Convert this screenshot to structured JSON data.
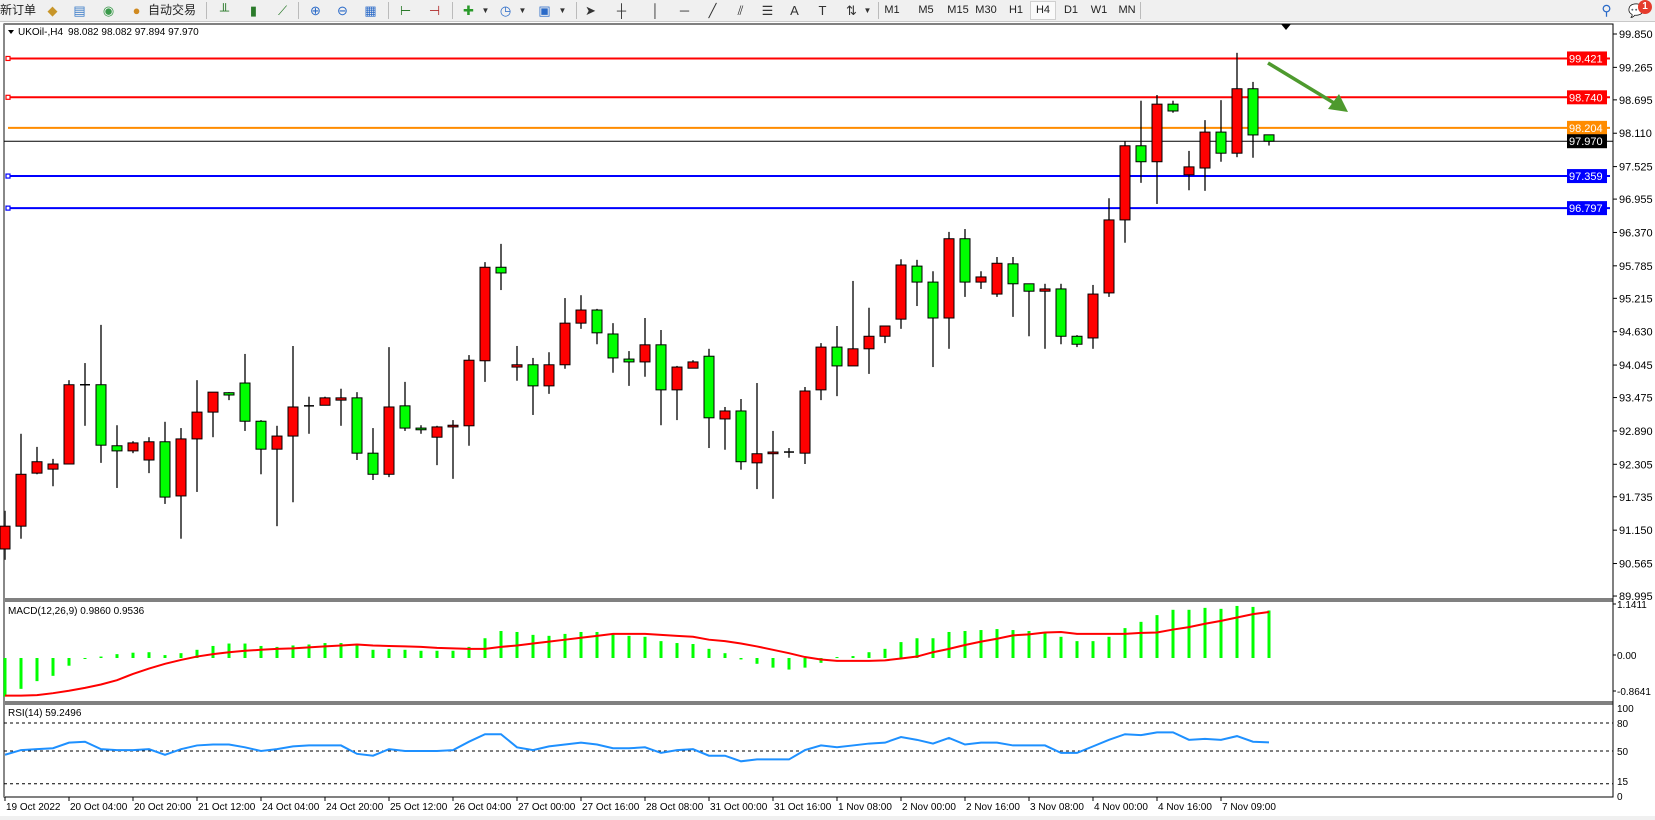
{
  "toolbar": {
    "new_order": "新订单",
    "auto_trading": "自动交易",
    "icons": [
      "market-watch-icon",
      "data-window-icon",
      "signals-icon",
      "auto-trading-icon",
      "bar-chart-icon",
      "candlestick-icon",
      "line-chart-icon",
      "zoom-in-icon",
      "zoom-out-icon",
      "tile-windows-icon",
      "auto-scroll-icon",
      "chart-shift-icon",
      "indicators-icon",
      "periods-icon",
      "templates-icon",
      "cursor-icon",
      "crosshair-icon",
      "vertical-line-icon",
      "horizontal-line-icon",
      "trendline-icon",
      "channel-icon",
      "fibonacci-icon",
      "text-icon",
      "text-label-icon",
      "arrows-icon",
      "search-icon",
      "notifications-icon"
    ],
    "timeframes": [
      "M1",
      "M5",
      "M15",
      "M30",
      "H1",
      "H4",
      "D1",
      "W1",
      "MN"
    ],
    "active_timeframe": "H4",
    "notification_count": "1"
  },
  "chart": {
    "symbol": "UKOil-,H4",
    "ohlc_readout": "98.082 98.082 97.894 97.970",
    "colors": {
      "up": "#ff0000",
      "down": "#00ff00",
      "outline": "#000000"
    }
  },
  "chart_data": [
    {
      "type": "candlestick",
      "title": "UKOil-,H4 98.082 98.082 97.894 97.970",
      "ylim": [
        89.995,
        99.85
      ],
      "y_ticks": [
        "99.850",
        "99.265",
        "98.695",
        "98.110",
        "97.525",
        "96.955",
        "96.370",
        "95.785",
        "95.215",
        "94.630",
        "94.045",
        "93.475",
        "92.890",
        "92.305",
        "91.735",
        "91.150",
        "90.565",
        "89.995"
      ],
      "x_tick_labels": [
        "19 Oct 2022",
        "20 Oct 04:00",
        "20 Oct 20:00",
        "21 Oct 12:00",
        "24 Oct 04:00",
        "24 Oct 20:00",
        "25 Oct 12:00",
        "26 Oct 04:00",
        "27 Oct 00:00",
        "27 Oct 16:00",
        "28 Oct 08:00",
        "31 Oct 00:00",
        "31 Oct 16:00",
        "1 Nov 08:00",
        "2 Nov 00:00",
        "2 Nov 16:00",
        "3 Nov 08:00",
        "4 Nov 00:00",
        "4 Nov 16:00",
        "7 Nov 09:00"
      ],
      "ohlc": [
        [
          90.82,
          91.49,
          90.63,
          91.22
        ],
        [
          91.22,
          92.84,
          91.0,
          92.13
        ],
        [
          92.15,
          92.61,
          92.13,
          92.35
        ],
        [
          92.22,
          92.4,
          91.92,
          92.31
        ],
        [
          92.31,
          93.78,
          92.31,
          93.7
        ],
        [
          93.7,
          94.08,
          92.98,
          93.7
        ],
        [
          93.7,
          94.75,
          92.33,
          92.64
        ],
        [
          92.63,
          92.99,
          91.89,
          92.54
        ],
        [
          92.54,
          92.71,
          92.5,
          92.68
        ],
        [
          92.38,
          92.78,
          92.15,
          92.7
        ],
        [
          92.7,
          93.05,
          91.61,
          91.73
        ],
        [
          91.75,
          92.94,
          91.0,
          92.75
        ],
        [
          92.75,
          93.78,
          91.82,
          93.22
        ],
        [
          93.22,
          93.57,
          92.78,
          93.57
        ],
        [
          93.56,
          93.57,
          93.43,
          93.52
        ],
        [
          93.73,
          94.24,
          92.89,
          93.06
        ],
        [
          93.06,
          93.08,
          92.13,
          92.57
        ],
        [
          92.57,
          92.98,
          91.22,
          92.8
        ],
        [
          92.8,
          94.38,
          91.64,
          93.31
        ],
        [
          93.33,
          93.49,
          92.84,
          93.33
        ],
        [
          93.34,
          93.49,
          93.34,
          93.47
        ],
        [
          93.43,
          93.63,
          92.98,
          93.47
        ],
        [
          93.47,
          93.57,
          92.38,
          92.5
        ],
        [
          92.5,
          92.94,
          92.03,
          92.13
        ],
        [
          92.13,
          94.36,
          92.08,
          93.31
        ],
        [
          93.33,
          93.75,
          92.89,
          92.94
        ],
        [
          92.94,
          92.99,
          92.84,
          92.91
        ],
        [
          92.78,
          92.98,
          92.29,
          92.96
        ],
        [
          92.96,
          93.08,
          92.05,
          92.99
        ],
        [
          92.98,
          94.22,
          92.63,
          94.13
        ],
        [
          94.12,
          95.85,
          93.75,
          95.76
        ],
        [
          95.76,
          96.17,
          95.36,
          95.66
        ],
        [
          94.01,
          94.38,
          93.77,
          94.05
        ],
        [
          94.05,
          94.17,
          93.17,
          93.68
        ],
        [
          93.68,
          94.27,
          93.54,
          94.05
        ],
        [
          94.05,
          95.22,
          93.98,
          94.78
        ],
        [
          94.78,
          95.27,
          94.68,
          95.01
        ],
        [
          95.01,
          95.03,
          94.41,
          94.61
        ],
        [
          94.59,
          94.78,
          93.91,
          94.17
        ],
        [
          94.15,
          94.29,
          93.68,
          94.1
        ],
        [
          94.1,
          94.87,
          93.84,
          94.4
        ],
        [
          94.4,
          94.66,
          92.99,
          93.61
        ],
        [
          93.61,
          94.03,
          93.08,
          94.01
        ],
        [
          93.99,
          94.13,
          93.99,
          94.1
        ],
        [
          94.2,
          94.33,
          92.59,
          93.12
        ],
        [
          93.1,
          93.31,
          92.56,
          93.24
        ],
        [
          93.24,
          93.45,
          92.21,
          92.35
        ],
        [
          92.33,
          93.73,
          91.87,
          92.49
        ],
        [
          92.49,
          92.89,
          91.7,
          92.52
        ],
        [
          92.52,
          92.59,
          92.42,
          92.52
        ],
        [
          92.5,
          93.66,
          92.31,
          93.59
        ],
        [
          93.61,
          94.43,
          93.43,
          94.36
        ],
        [
          94.36,
          94.73,
          93.5,
          94.03
        ],
        [
          94.03,
          95.52,
          94.03,
          94.33
        ],
        [
          94.33,
          95.05,
          93.89,
          94.55
        ],
        [
          94.55,
          94.73,
          94.43,
          94.73
        ],
        [
          94.85,
          95.9,
          94.68,
          95.8
        ],
        [
          95.78,
          95.89,
          95.08,
          95.5
        ],
        [
          95.5,
          95.69,
          94.01,
          94.87
        ],
        [
          94.87,
          96.38,
          94.33,
          96.26
        ],
        [
          96.26,
          96.43,
          95.24,
          95.5
        ],
        [
          95.5,
          95.69,
          95.38,
          95.59
        ],
        [
          95.29,
          95.94,
          95.24,
          95.83
        ],
        [
          95.82,
          95.94,
          94.89,
          95.47
        ],
        [
          95.47,
          95.47,
          94.55,
          95.34
        ],
        [
          95.34,
          95.47,
          94.33,
          95.38
        ],
        [
          95.38,
          95.47,
          94.41,
          94.55
        ],
        [
          94.55,
          94.57,
          94.36,
          94.41
        ],
        [
          94.52,
          95.45,
          94.33,
          95.29
        ],
        [
          95.31,
          96.97,
          95.24,
          96.59
        ],
        [
          96.59,
          97.97,
          96.19,
          97.89
        ],
        [
          97.89,
          98.68,
          97.24,
          97.61
        ],
        [
          97.61,
          98.78,
          96.87,
          98.62
        ],
        [
          98.62,
          98.68,
          98.47,
          98.5
        ],
        [
          97.38,
          97.8,
          97.11,
          97.52
        ],
        [
          97.5,
          98.34,
          97.1,
          98.13
        ],
        [
          98.13,
          98.69,
          97.61,
          97.76
        ],
        [
          97.76,
          99.52,
          97.69,
          98.89
        ],
        [
          98.89,
          99.01,
          97.68,
          98.08
        ],
        [
          98.082,
          98.082,
          97.894,
          97.97
        ]
      ],
      "horizontal_lines": [
        {
          "value": "99.421",
          "color": "#ff0000",
          "label_text_color": "#ffffff"
        },
        {
          "value": "98.740",
          "color": "#ff0000",
          "label_text_color": "#ffffff"
        },
        {
          "value": "98.204",
          "color": "#ff8c00",
          "label_text_color": "#ffffff"
        },
        {
          "value": "97.970",
          "color": "#000000",
          "label_text_color": "#ffffff",
          "current_price": true
        },
        {
          "value": "97.359",
          "color": "#0000ff",
          "label_text_color": "#ffffff"
        },
        {
          "value": "96.797",
          "color": "#0000ff",
          "label_text_color": "#ffffff"
        }
      ],
      "annotation_arrow": {
        "color": "#4e9a2e",
        "direction": "down-right"
      }
    },
    {
      "type": "bar+line",
      "title": "MACD(12,26,9) 0.9860 0.9536",
      "y_ticks": [
        "1.1411",
        "0.00",
        "-0.8641"
      ],
      "ylim": [
        -0.8641,
        1.1411
      ],
      "series": [
        {
          "kind": "histogram",
          "color": "#00ff00",
          "values": [
            -0.8,
            -0.64,
            -0.48,
            -0.37,
            -0.16,
            -0.01,
            0.03,
            0.08,
            0.11,
            0.12,
            0.06,
            0.1,
            0.17,
            0.25,
            0.3,
            0.3,
            0.25,
            0.23,
            0.26,
            0.28,
            0.31,
            0.31,
            0.26,
            0.17,
            0.19,
            0.17,
            0.15,
            0.15,
            0.15,
            0.23,
            0.41,
            0.56,
            0.54,
            0.48,
            0.46,
            0.5,
            0.54,
            0.54,
            0.49,
            0.46,
            0.44,
            0.35,
            0.31,
            0.29,
            0.19,
            0.1,
            -0.03,
            -0.12,
            -0.2,
            -0.24,
            -0.2,
            -0.1,
            0.02,
            0.04,
            0.12,
            0.19,
            0.33,
            0.41,
            0.41,
            0.54,
            0.56,
            0.58,
            0.6,
            0.58,
            0.56,
            0.52,
            0.44,
            0.35,
            0.35,
            0.44,
            0.62,
            0.75,
            0.89,
            1.0,
            1.0,
            1.04,
            1.02,
            1.08,
            1.06,
            0.986
          ]
        },
        {
          "kind": "signal",
          "color": "#ff0000",
          "values": [
            -0.78,
            -0.78,
            -0.77,
            -0.73,
            -0.68,
            -0.62,
            -0.55,
            -0.46,
            -0.33,
            -0.22,
            -0.12,
            -0.04,
            0.03,
            0.08,
            0.12,
            0.15,
            0.17,
            0.19,
            0.2,
            0.22,
            0.24,
            0.26,
            0.28,
            0.26,
            0.25,
            0.24,
            0.23,
            0.21,
            0.2,
            0.19,
            0.19,
            0.23,
            0.26,
            0.3,
            0.34,
            0.38,
            0.42,
            0.46,
            0.5,
            0.5,
            0.5,
            0.48,
            0.46,
            0.44,
            0.38,
            0.35,
            0.3,
            0.24,
            0.17,
            0.1,
            0.02,
            -0.03,
            -0.06,
            -0.06,
            -0.06,
            -0.05,
            -0.01,
            0.03,
            0.12,
            0.19,
            0.27,
            0.34,
            0.4,
            0.47,
            0.49,
            0.53,
            0.54,
            0.5,
            0.5,
            0.5,
            0.5,
            0.52,
            0.53,
            0.59,
            0.64,
            0.71,
            0.77,
            0.84,
            0.91,
            0.9536
          ]
        }
      ]
    },
    {
      "type": "line",
      "title": "RSI(14) 59.2496",
      "y_ticks": [
        "100",
        "80",
        "50",
        "15",
        "0"
      ],
      "levels": [
        80,
        50,
        15
      ],
      "ylim": [
        0,
        100
      ],
      "color": "#1e90ff",
      "values": [
        46,
        51,
        52,
        53,
        59,
        60,
        52,
        51,
        51,
        52,
        46,
        52,
        56,
        57,
        57,
        54,
        50,
        52,
        55,
        56,
        56,
        56,
        47,
        45,
        52,
        50,
        50,
        50,
        51,
        60,
        68,
        68,
        54,
        51,
        55,
        57,
        59,
        57,
        53,
        53,
        54,
        48,
        51,
        52,
        45,
        45,
        39,
        41,
        41,
        41,
        51,
        56,
        54,
        56,
        58,
        59,
        65,
        62,
        58,
        64,
        57,
        59,
        59,
        56,
        56,
        56,
        48,
        48,
        55,
        62,
        68,
        67,
        70,
        70,
        62,
        63,
        62,
        66,
        60,
        59.2496
      ]
    }
  ]
}
